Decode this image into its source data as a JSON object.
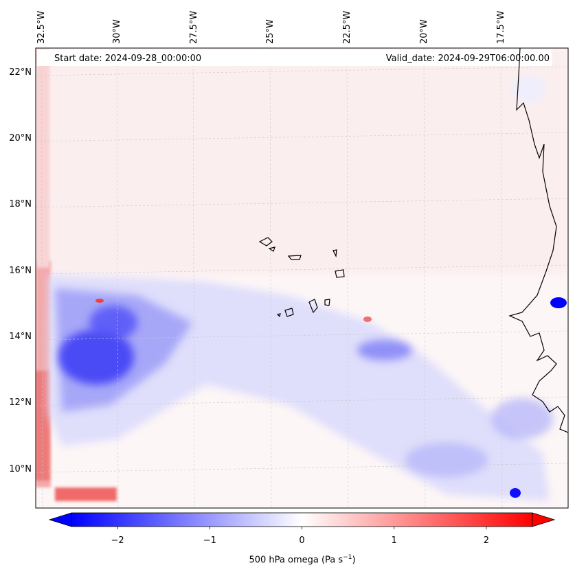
{
  "header": {
    "start_date": "Start date: 2024-09-28_00:00:00",
    "valid_date": "Valid_date: 2024-09-29T06:00:00.00"
  },
  "longitude_labels": [
    "32.5°W",
    "30°W",
    "27.5°W",
    "25°W",
    "22.5°W",
    "20°W",
    "17.5°W"
  ],
  "latitude_labels": [
    "22°N",
    "20°N",
    "18°N",
    "16°N",
    "14°N",
    "12°N",
    "10°N"
  ],
  "colorbar": {
    "ticks": [
      {
        "value": -2,
        "label": "−2"
      },
      {
        "value": -1,
        "label": "−1"
      },
      {
        "value": 0,
        "label": "0"
      },
      {
        "value": 1,
        "label": "1"
      },
      {
        "value": 2,
        "label": "2"
      }
    ],
    "range": [
      -2.5,
      2.5
    ],
    "label_prefix": "500 hPa omega (Pa s",
    "label_sup": "−1",
    "label_suffix": ")",
    "colormap": "bwr",
    "extend": "both"
  },
  "chart_data": {
    "type": "heatmap",
    "variable": "500 hPa omega",
    "units": "Pa s-1",
    "region": {
      "lon_range": [
        -33,
        -15.5
      ],
      "lat_range": [
        9,
        22.7
      ]
    },
    "value_range": [
      -2.5,
      2.5
    ],
    "features": [
      {
        "name": "strong ascent core",
        "lon": -30,
        "lat": 13,
        "value": -2.3
      },
      {
        "name": "ascent band edge",
        "lon": -26,
        "lat": 14,
        "value": -0.8
      },
      {
        "name": "eastern ascent band",
        "lon": -21.5,
        "lat": 13.5,
        "value": -1.2
      },
      {
        "name": "coastal ascent spot",
        "lon": -15.8,
        "lat": 14.9,
        "value": -2.2
      },
      {
        "name": "southeast ascent spot",
        "lon": -17.3,
        "lat": 9.4,
        "value": -2.0
      },
      {
        "name": "western boundary descent",
        "lon": -32.8,
        "lat": 11,
        "value": 1.5
      },
      {
        "name": "southwest descent strip",
        "lon": -31,
        "lat": 9.3,
        "value": 2.0
      },
      {
        "name": "northern weak descent",
        "lon": -24,
        "lat": 21,
        "value": 0.2
      }
    ]
  }
}
